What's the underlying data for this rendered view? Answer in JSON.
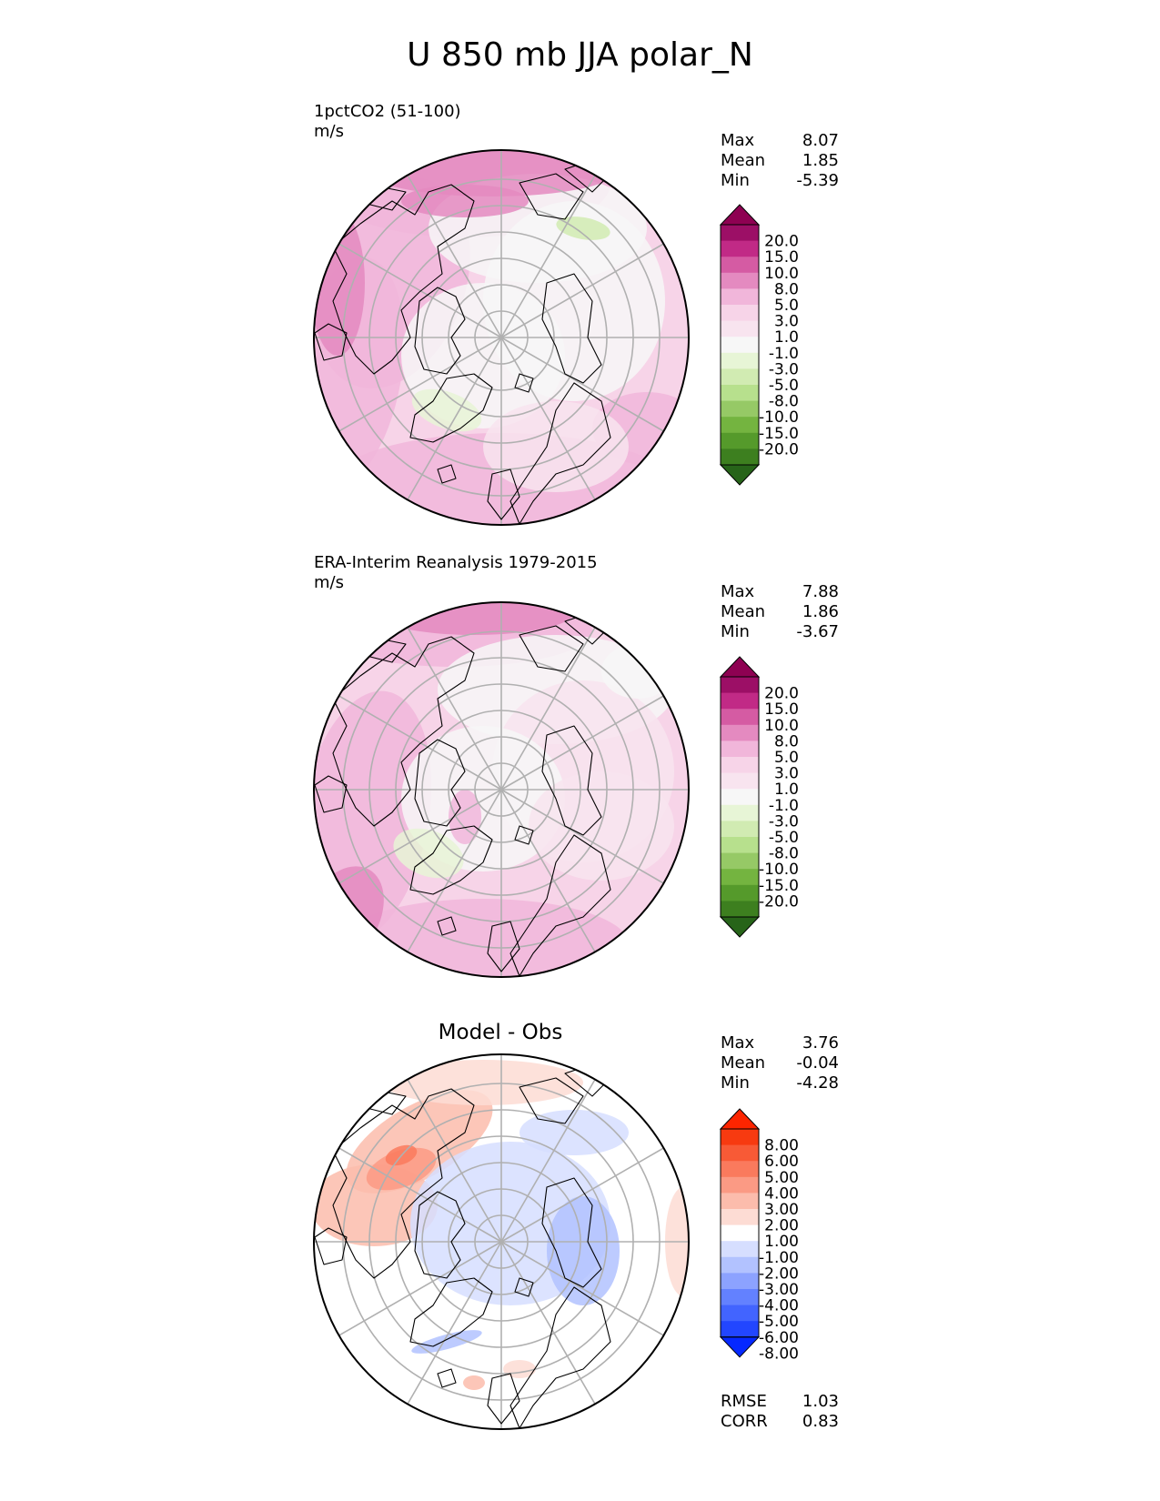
{
  "figure": {
    "title": "U 850 mb JJA polar_N"
  },
  "colors": {
    "diverging_pg": [
      "#276419",
      "#3d7f1f",
      "#559a2b",
      "#74b440",
      "#96c966",
      "#b7e08d",
      "#d1ebb2",
      "#e7f5d6",
      "#f7f7f7",
      "#f8e4ef",
      "#f7d4e8",
      "#f1b6da",
      "#e48ac0",
      "#d55ba3",
      "#c12a86",
      "#9c0f66",
      "#8e0152"
    ],
    "diverging_br": [
      "#0528ff",
      "#2246ff",
      "#4264ff",
      "#6381ff",
      "#8ca2ff",
      "#b2c2ff",
      "#d6deff",
      "#ffffff",
      "#fddcd4",
      "#fcbcac",
      "#fb9a84",
      "#fa7a5d",
      "#f85a36",
      "#f73a10",
      "#fd2500"
    ],
    "land": "#000000",
    "grid": "#b0b0b0"
  },
  "chart_data": [
    {
      "type": "heatmap",
      "projection": "north-polar-stereographic",
      "title": "1pctCO2 (51-100)",
      "units": "m/s",
      "stats": [
        {
          "label": "Max",
          "value": "8.07"
        },
        {
          "label": "Mean",
          "value": "1.85"
        },
        {
          "label": "Min",
          "value": "-5.39"
        }
      ],
      "colorbar": {
        "levels": [
          "20.0",
          "15.0",
          "10.0",
          "8.0",
          "5.0",
          "3.0",
          "1.0",
          "-1.0",
          "-3.0",
          "-5.0",
          "-8.0",
          "-10.0",
          "-15.0",
          "-20.0"
        ],
        "extend": "both",
        "palette": "diverging_pg"
      }
    },
    {
      "type": "heatmap",
      "projection": "north-polar-stereographic",
      "title": "ERA-Interim Reanalysis 1979-2015",
      "units": "m/s",
      "stats": [
        {
          "label": "Max",
          "value": "7.88"
        },
        {
          "label": "Mean",
          "value": "1.86"
        },
        {
          "label": "Min",
          "value": "-3.67"
        }
      ],
      "colorbar": {
        "levels": [
          "20.0",
          "15.0",
          "10.0",
          "8.0",
          "5.0",
          "3.0",
          "1.0",
          "-1.0",
          "-3.0",
          "-5.0",
          "-8.0",
          "-10.0",
          "-15.0",
          "-20.0"
        ],
        "extend": "both",
        "palette": "diverging_pg"
      }
    },
    {
      "type": "heatmap",
      "projection": "north-polar-stereographic",
      "title": "Model - Obs",
      "stats": [
        {
          "label": "Max",
          "value": "3.76"
        },
        {
          "label": "Mean",
          "value": "-0.04"
        },
        {
          "label": "Min",
          "value": "-4.28"
        }
      ],
      "colorbar": {
        "levels": [
          "8.00",
          "6.00",
          "5.00",
          "4.00",
          "3.00",
          "2.00",
          "1.00",
          "-1.00",
          "-2.00",
          "-3.00",
          "-4.00",
          "-5.00",
          "-6.00",
          "-8.00"
        ],
        "extend": "both",
        "palette": "diverging_br"
      },
      "metrics": [
        {
          "label": "RMSE",
          "value": "1.03"
        },
        {
          "label": "CORR",
          "value": "0.83"
        }
      ]
    }
  ]
}
